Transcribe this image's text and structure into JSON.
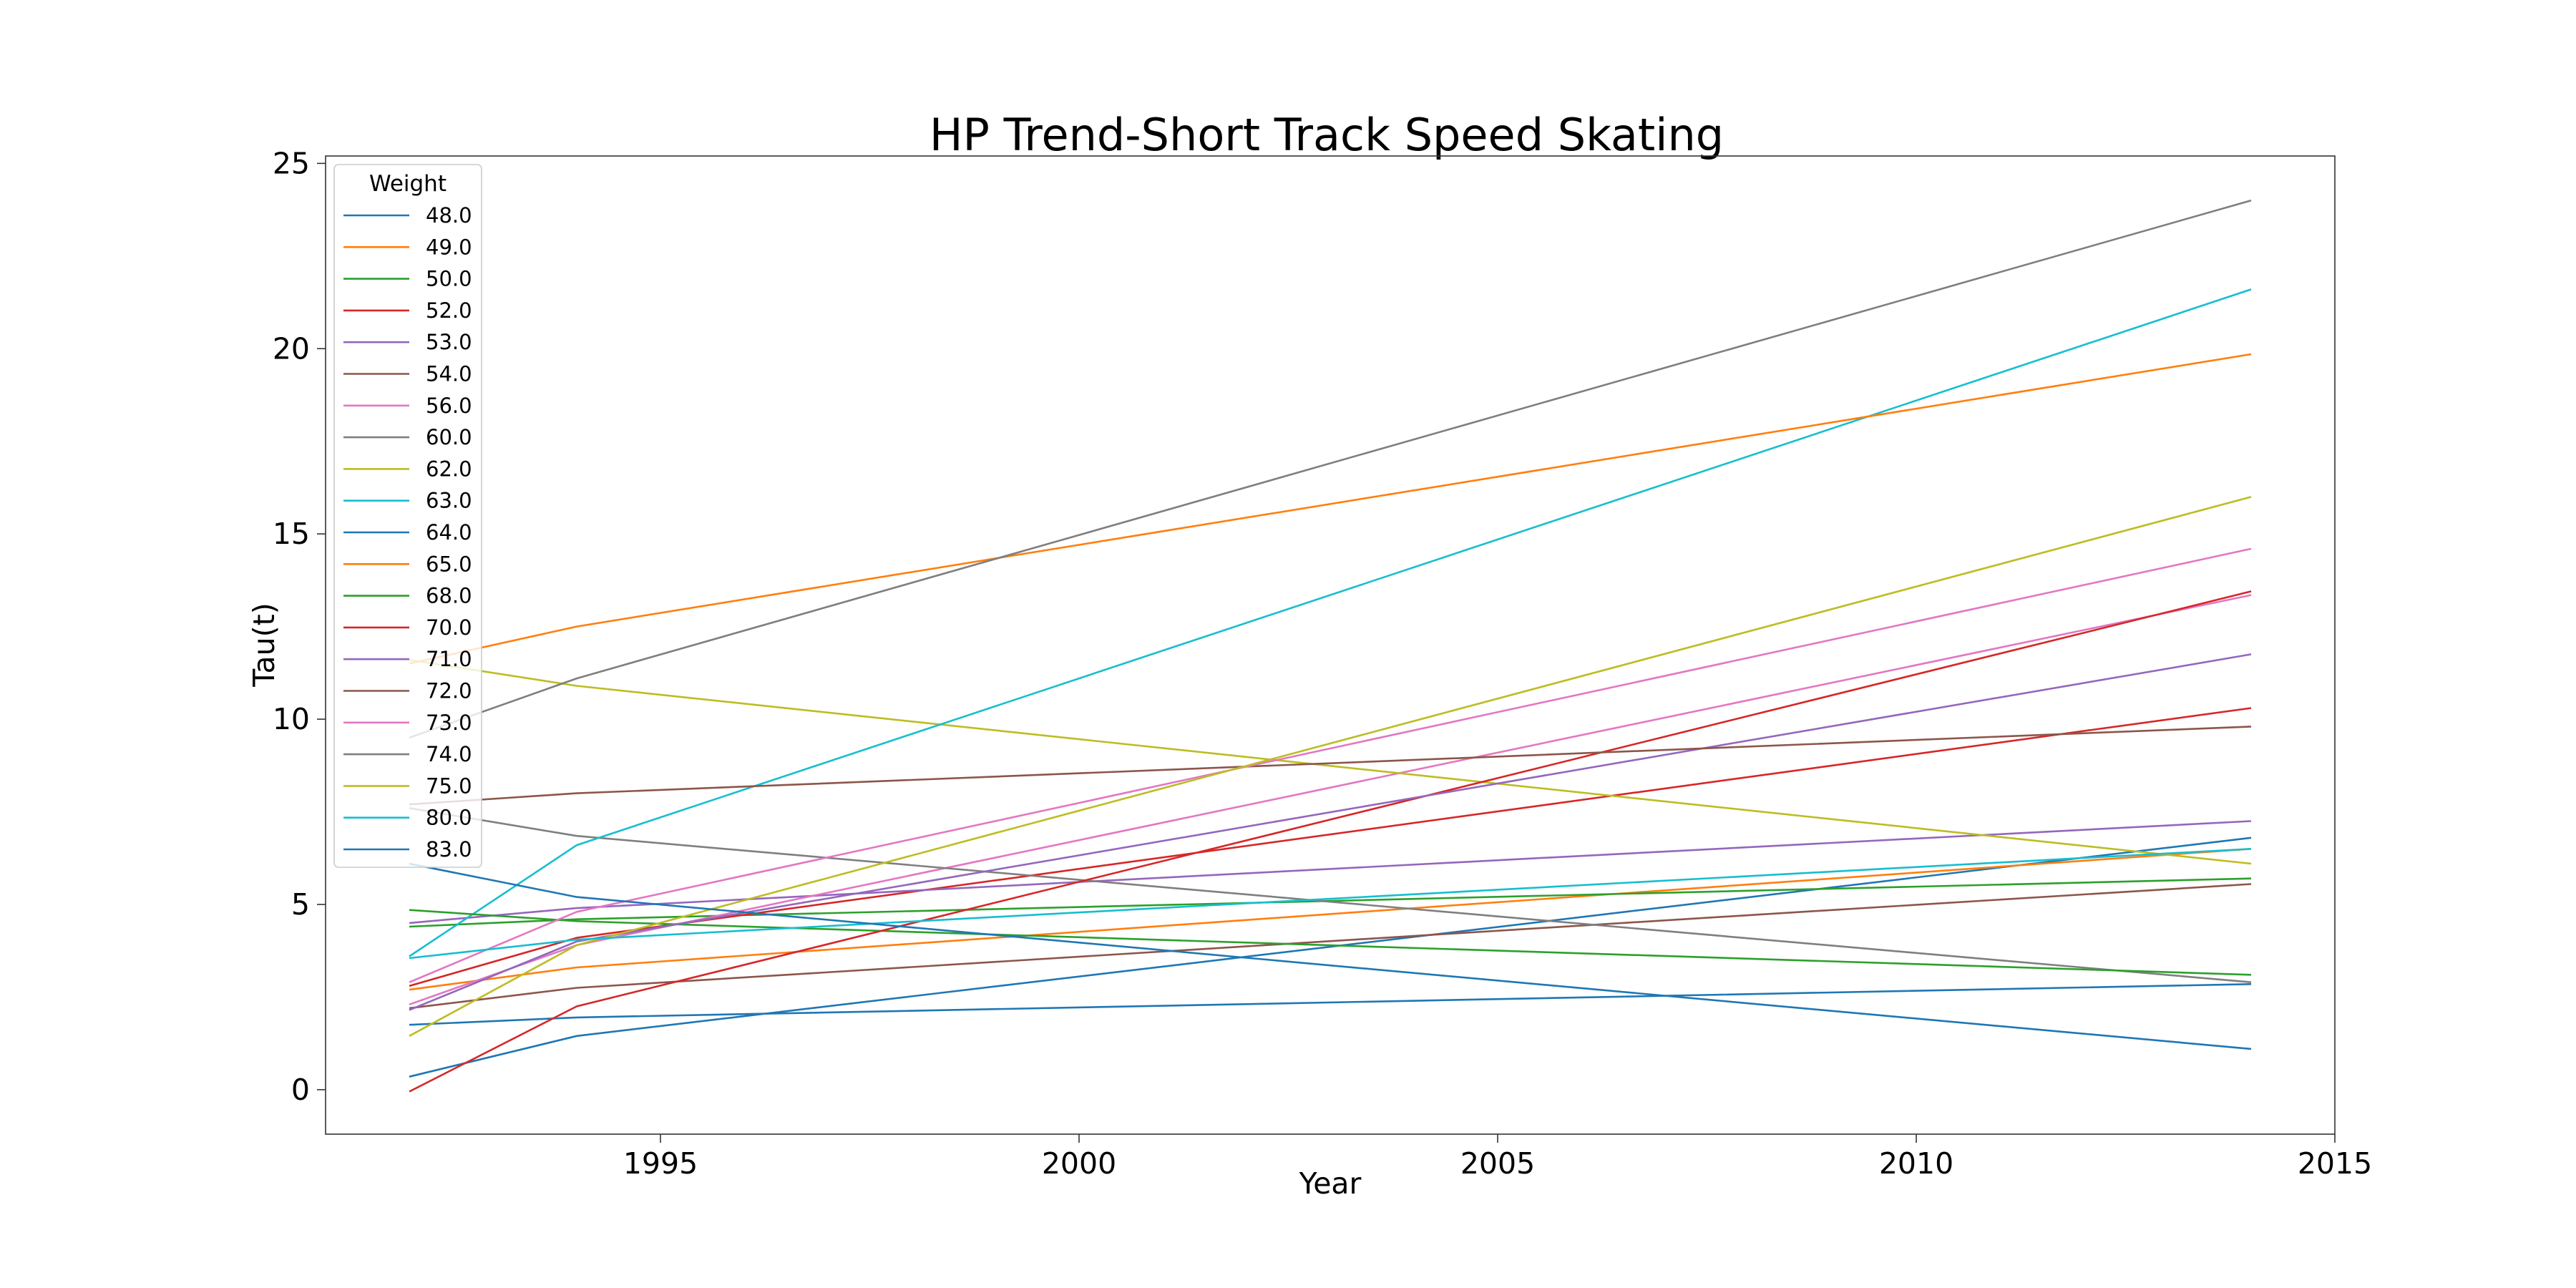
{
  "chart_data": {
    "type": "line",
    "title": "HP Trend-Short Track Speed Skating",
    "xlabel": "Year",
    "ylabel": "Tau(t)",
    "xlim": [
      1991,
      2015
    ],
    "ylim": [
      -1.2,
      25.2
    ],
    "x_ticks": [
      1995,
      2000,
      2005,
      2010,
      2015
    ],
    "y_ticks": [
      0,
      5,
      10,
      15,
      20,
      25
    ],
    "grid": false,
    "legend": {
      "title": "Weight",
      "position": "top-left"
    },
    "x": [
      1992,
      1994,
      2014
    ],
    "series": [
      {
        "name": "48.0",
        "color": "#1f77b4",
        "values": [
          0.35,
          1.45,
          6.8
        ]
      },
      {
        "name": "49.0",
        "color": "#ff7f0e",
        "values": [
          2.7,
          3.3,
          6.5
        ]
      },
      {
        "name": "50.0",
        "color": "#2ca02c",
        "values": [
          4.4,
          4.6,
          5.7
        ]
      },
      {
        "name": "52.0",
        "color": "#d62728",
        "values": [
          2.8,
          4.1,
          10.3
        ]
      },
      {
        "name": "53.0",
        "color": "#9467bd",
        "values": [
          4.5,
          4.9,
          7.25
        ]
      },
      {
        "name": "54.0",
        "color": "#8c564b",
        "values": [
          2.2,
          2.75,
          5.55
        ]
      },
      {
        "name": "56.0",
        "color": "#e377c2",
        "values": [
          2.3,
          3.9,
          13.35
        ]
      },
      {
        "name": "60.0",
        "color": "#7f7f7f",
        "values": [
          7.6,
          6.85,
          2.9
        ]
      },
      {
        "name": "62.0",
        "color": "#bcbd22",
        "values": [
          11.6,
          10.9,
          6.1
        ]
      },
      {
        "name": "63.0",
        "color": "#17becf",
        "values": [
          3.6,
          6.6,
          21.6
        ]
      },
      {
        "name": "64.0",
        "color": "#1f77b4",
        "values": [
          1.75,
          1.95,
          2.85
        ]
      },
      {
        "name": "65.0",
        "color": "#ff7f0e",
        "values": [
          11.5,
          12.5,
          19.85
        ]
      },
      {
        "name": "68.0",
        "color": "#2ca02c",
        "values": [
          4.85,
          4.55,
          3.1
        ]
      },
      {
        "name": "70.0",
        "color": "#d62728",
        "values": [
          -0.05,
          2.25,
          13.45
        ]
      },
      {
        "name": "71.0",
        "color": "#9467bd",
        "values": [
          2.15,
          4.0,
          11.75
        ]
      },
      {
        "name": "72.0",
        "color": "#8c564b",
        "values": [
          7.7,
          8.0,
          9.8
        ]
      },
      {
        "name": "73.0",
        "color": "#e377c2",
        "values": [
          2.9,
          4.8,
          14.6
        ]
      },
      {
        "name": "74.0",
        "color": "#7f7f7f",
        "values": [
          9.5,
          11.1,
          24.0
        ]
      },
      {
        "name": "75.0",
        "color": "#bcbd22",
        "values": [
          1.45,
          3.9,
          16.0
        ]
      },
      {
        "name": "80.0",
        "color": "#17becf",
        "values": [
          3.55,
          4.05,
          6.5
        ]
      },
      {
        "name": "83.0",
        "color": "#1f77b4",
        "values": [
          6.1,
          5.2,
          1.1
        ]
      }
    ]
  }
}
